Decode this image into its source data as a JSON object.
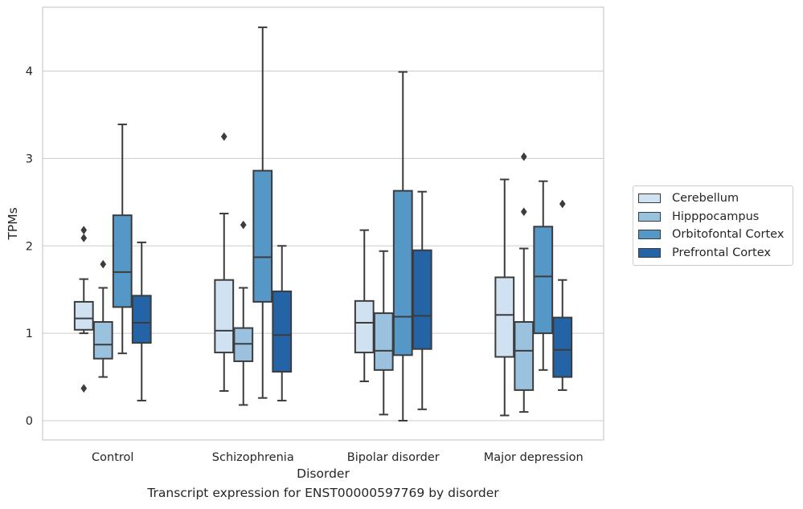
{
  "chart_data": {
    "type": "boxplot",
    "xlabel": "Disorder",
    "ylabel": "TPMs",
    "caption": "Transcript expression for ENST00000597769 by disorder",
    "ylim": [
      -0.2,
      4.75
    ],
    "yticks": [
      0,
      1,
      2,
      3,
      4
    ],
    "grid": "horizontal",
    "legend_position": "right",
    "categories": [
      "Control",
      "Schizophrenia",
      "Bipolar disorder",
      "Major depression"
    ],
    "series": [
      {
        "name": "Cerebellum",
        "color": "#d0e2f2",
        "boxes": [
          {
            "whislo": 1.0,
            "q1": 1.04,
            "med": 1.17,
            "q3": 1.36,
            "whishi": 1.62,
            "fliers": [
              2.18,
              2.09,
              0.37
            ]
          },
          {
            "whislo": 0.34,
            "q1": 0.78,
            "med": 1.03,
            "q3": 1.61,
            "whishi": 2.37,
            "fliers": [
              3.25
            ]
          },
          {
            "whislo": 0.45,
            "q1": 0.78,
            "med": 1.12,
            "q3": 1.37,
            "whishi": 2.18,
            "fliers": []
          },
          {
            "whislo": 0.06,
            "q1": 0.73,
            "med": 1.21,
            "q3": 1.64,
            "whishi": 2.76,
            "fliers": []
          }
        ]
      },
      {
        "name": "Hipppocampus",
        "color": "#9ac1dd",
        "boxes": [
          {
            "whislo": 0.5,
            "q1": 0.71,
            "med": 0.87,
            "q3": 1.13,
            "whishi": 1.52,
            "fliers": [
              1.79
            ]
          },
          {
            "whislo": 0.18,
            "q1": 0.68,
            "med": 0.88,
            "q3": 1.06,
            "whishi": 1.52,
            "fliers": [
              2.24
            ]
          },
          {
            "whislo": 0.07,
            "q1": 0.58,
            "med": 0.8,
            "q3": 1.23,
            "whishi": 1.94,
            "fliers": []
          },
          {
            "whislo": 0.1,
            "q1": 0.35,
            "med": 0.8,
            "q3": 1.13,
            "whishi": 1.97,
            "fliers": [
              2.39,
              3.02
            ]
          }
        ]
      },
      {
        "name": "Orbitofontal Cortex",
        "color": "#5598c8",
        "boxes": [
          {
            "whislo": 0.77,
            "q1": 1.3,
            "med": 1.7,
            "q3": 2.35,
            "whishi": 3.39,
            "fliers": []
          },
          {
            "whislo": 0.26,
            "q1": 1.36,
            "med": 1.87,
            "q3": 2.86,
            "whishi": 4.5,
            "fliers": []
          },
          {
            "whislo": 0.0,
            "q1": 0.75,
            "med": 1.19,
            "q3": 2.63,
            "whishi": 3.99,
            "fliers": []
          },
          {
            "whislo": 0.58,
            "q1": 1.0,
            "med": 1.65,
            "q3": 2.22,
            "whishi": 2.74,
            "fliers": []
          }
        ]
      },
      {
        "name": "Prefrontal Cortex",
        "color": "#2463a5",
        "boxes": [
          {
            "whislo": 0.23,
            "q1": 0.89,
            "med": 1.12,
            "q3": 1.43,
            "whishi": 2.04,
            "fliers": []
          },
          {
            "whislo": 0.23,
            "q1": 0.56,
            "med": 0.98,
            "q3": 1.48,
            "whishi": 2.0,
            "fliers": []
          },
          {
            "whislo": 0.13,
            "q1": 0.82,
            "med": 1.2,
            "q3": 1.95,
            "whishi": 2.62,
            "fliers": []
          },
          {
            "whislo": 0.35,
            "q1": 0.5,
            "med": 0.81,
            "q3": 1.18,
            "whishi": 1.61,
            "fliers": [
              2.48
            ]
          }
        ]
      }
    ]
  }
}
